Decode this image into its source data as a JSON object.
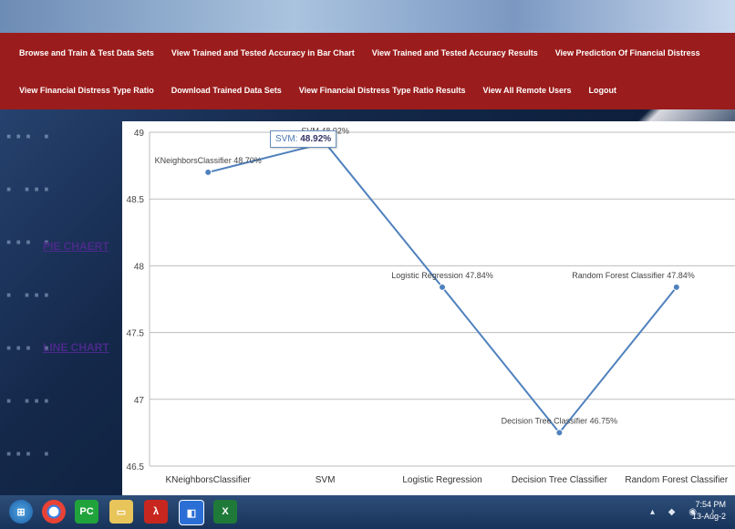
{
  "nav": {
    "row1": [
      "Browse and Train & Test Data Sets",
      "View Trained and Tested Accuracy in Bar Chart",
      "View Trained and Tested Accuracy Results",
      "View Prediction Of Financial Distress"
    ],
    "row2": [
      "View Financial Distress Type Ratio",
      "Download Trained Data Sets",
      "View Financial Distress Type Ratio Results",
      "View All Remote Users",
      "Logout"
    ]
  },
  "sidebar": {
    "pie_link": "PIE CHAERT",
    "line_link": "LINE CHART"
  },
  "tooltip": {
    "name": "SVM:",
    "value": "48.92%"
  },
  "chart_data": {
    "type": "line",
    "categories": [
      "KNeighborsClassifier",
      "SVM",
      "Logistic Regression",
      "Decision Tree Classifier",
      "Random Forest Classifier"
    ],
    "values": [
      48.7,
      48.92,
      47.84,
      46.75,
      47.84
    ],
    "point_labels": [
      "KNeighborsClassifier 48.70%",
      "SVM 48.92%",
      "Logistic Regression 47.84%",
      "Decision Tree Classifier 46.75%",
      "Random Forest Classifier 47.84%"
    ],
    "ylim": [
      46.5,
      49
    ],
    "yticks": [
      "46.5",
      "47",
      "47.5",
      "48",
      "48.5",
      "49"
    ],
    "grid": true,
    "line_color": "#4f81bd"
  },
  "taskbar": {
    "apps": [
      "windows-start",
      "chrome",
      "pycharm",
      "file-explorer",
      "acrobat",
      "app-blue",
      "excel"
    ],
    "time": "7:54 PM",
    "date": "13-Aug-2"
  }
}
